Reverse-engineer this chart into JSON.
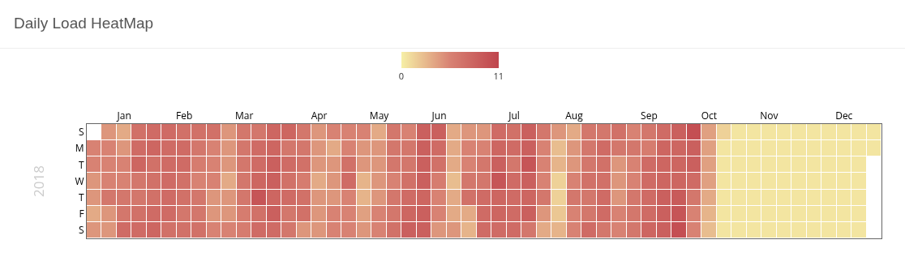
{
  "chart_data": {
    "type": "heatmap",
    "title": "Daily Load HeatMap",
    "ylabel": "2018",
    "categories": [
      null,
      null,
      "Jan",
      null,
      null,
      null,
      "Feb",
      null,
      null,
      null,
      "Mar",
      null,
      null,
      null,
      null,
      "Apr",
      null,
      null,
      null,
      "May",
      null,
      null,
      null,
      "Jun",
      null,
      null,
      null,
      null,
      "Jul",
      null,
      null,
      null,
      "Aug",
      null,
      null,
      null,
      null,
      "Sep",
      null,
      null,
      null,
      "Oct",
      null,
      null,
      null,
      "Nov",
      null,
      null,
      null,
      null,
      "Dec",
      null,
      null
    ],
    "y_categories": [
      "S",
      "M",
      "T",
      "W",
      "T",
      "F",
      "S"
    ],
    "cells": [
      [
        null,
        4.5,
        3.5,
        7,
        7.5,
        7.5,
        7,
        7,
        7,
        4.5,
        6.5,
        6.5,
        8,
        8,
        6.5,
        4.5,
        5.5,
        5.5,
        5.5,
        3.5,
        6.5,
        5.5,
        8.5,
        8.5,
        3.5,
        4.5,
        4.5,
        7.5,
        7,
        8.5,
        6.5,
        4.5,
        3.5,
        6.5,
        6.5,
        7,
        5.5,
        6.5,
        7.5,
        8.5,
        10,
        4,
        1.5,
        0.5,
        0.5,
        0.5,
        0.5,
        0.5,
        0.5,
        0.5,
        0.5,
        0.5,
        0.5
      ],
      [
        5.5,
        5.5,
        4.5,
        7.5,
        8,
        7.5,
        7.5,
        6.5,
        5.5,
        4.5,
        6.5,
        7.5,
        8,
        6.5,
        6.5,
        4.5,
        3.5,
        5.5,
        4.5,
        4.5,
        6.5,
        6.5,
        8.5,
        7.5,
        3.5,
        5.5,
        5.5,
        8,
        7.5,
        8.5,
        5.5,
        2.5,
        4.5,
        6.5,
        7.5,
        6.5,
        6.5,
        6,
        8,
        8,
        8.5,
        4,
        0.5,
        0.5,
        0.5,
        0.5,
        0.5,
        0.5,
        0.5,
        0.5,
        0.5,
        0.5,
        0.5
      ],
      [
        5.5,
        5.5,
        5.5,
        8,
        7,
        7.5,
        7.5,
        6,
        5.5,
        4.5,
        6.5,
        7.5,
        8.5,
        7.5,
        7,
        4.5,
        4.5,
        7,
        4.5,
        4.5,
        6.5,
        6.5,
        8.5,
        7,
        3.5,
        5.5,
        6.5,
        8.5,
        6.5,
        9.5,
        5.5,
        3,
        4.5,
        6.5,
        7,
        4.5,
        5.5,
        7.5,
        8,
        8,
        8.5,
        4,
        0.5,
        0.5,
        0.5,
        0.5,
        0.5,
        0.5,
        0.5,
        0.5,
        0.5,
        0.5,
        null
      ],
      [
        4.5,
        5.5,
        5.5,
        6.5,
        7,
        7.5,
        7,
        5.5,
        5.5,
        3.5,
        6.5,
        8,
        8.5,
        7,
        6,
        3.5,
        4.5,
        7.5,
        3,
        4.5,
        5.5,
        7,
        8.5,
        6,
        2.5,
        6.5,
        6.5,
        9.5,
        7.5,
        8.5,
        5.5,
        1.5,
        5.5,
        7,
        7,
        4.5,
        5.5,
        7.5,
        8,
        8,
        7.5,
        4,
        0.5,
        0.5,
        0.5,
        0.5,
        0.5,
        0.5,
        0.5,
        0.5,
        0.5,
        0.5,
        null
      ],
      [
        4.5,
        6.5,
        6.5,
        6.5,
        7,
        7.5,
        7,
        6.5,
        4.5,
        4.5,
        6.5,
        9.5,
        8,
        7.5,
        7,
        4.5,
        4.5,
        5.5,
        3,
        4.5,
        6.5,
        7.5,
        8,
        5.5,
        3.5,
        7,
        7.5,
        8,
        7.5,
        8,
        6.5,
        1.5,
        6.5,
        6.5,
        7.5,
        4.5,
        6.5,
        7.5,
        8.5,
        9,
        6.5,
        3.5,
        0.5,
        0.5,
        0.5,
        0.5,
        0.5,
        0.5,
        0.5,
        0.5,
        0.5,
        0.5,
        null
      ],
      [
        3.5,
        4.5,
        6.5,
        7,
        7.5,
        7.5,
        6.5,
        6.5,
        4.5,
        4.5,
        6,
        7,
        8.5,
        6.5,
        7,
        4.5,
        5.5,
        5.5,
        4,
        5.5,
        6.5,
        8,
        8.5,
        5.5,
        3.5,
        3.5,
        7.5,
        8,
        7.5,
        8.5,
        4.5,
        2,
        5.5,
        6.5,
        7.5,
        5.5,
        6.5,
        7.5,
        8.5,
        9.5,
        5.5,
        3,
        0.5,
        0.5,
        0.5,
        0.5,
        0.5,
        0.5,
        0.5,
        0.5,
        0.5,
        0.5,
        null
      ],
      [
        4.5,
        4.5,
        7.5,
        7.5,
        8,
        7,
        7,
        7,
        5.5,
        5.5,
        6,
        7.5,
        7.5,
        6.5,
        4.5,
        4.5,
        5.5,
        5.5,
        4.5,
        5.5,
        7,
        8.5,
        8.5,
        4.5,
        4.5,
        3,
        7.5,
        7.5,
        7.5,
        6.5,
        3.5,
        3,
        5.5,
        7.5,
        6.5,
        5.5,
        6.5,
        8,
        8.5,
        10,
        5.5,
        2.5,
        0.5,
        0.5,
        0.5,
        0.5,
        0.5,
        0.5,
        0.5,
        0.5,
        0.5,
        0.5,
        null
      ]
    ],
    "clim": [
      0,
      11
    ],
    "cticks": [
      0,
      11
    ]
  }
}
